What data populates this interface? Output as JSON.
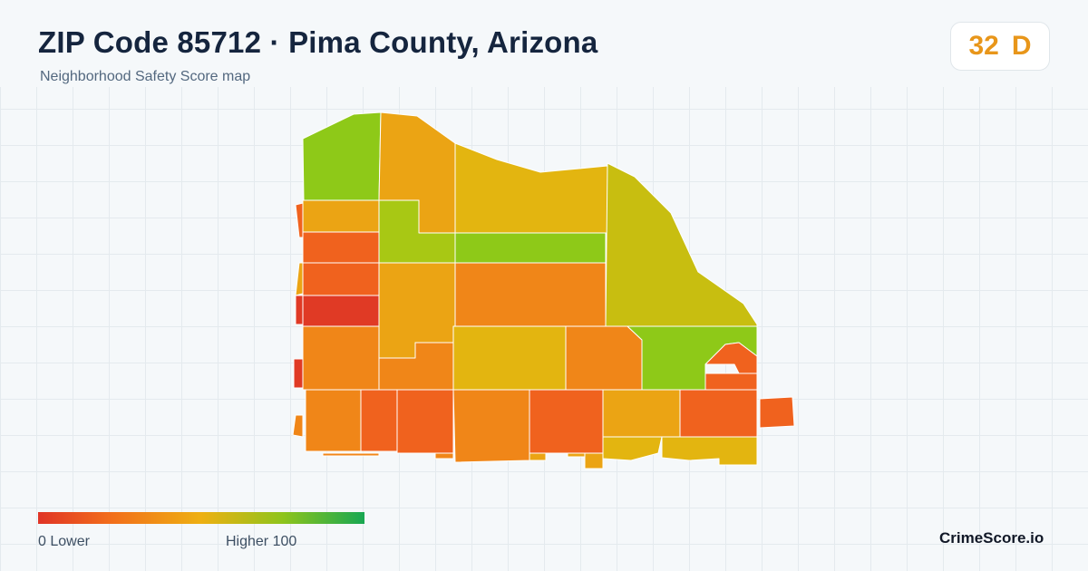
{
  "header": {
    "title": "ZIP Code 85712 · Pima County, Arizona",
    "subtitle": "Neighborhood Safety Score map"
  },
  "score": {
    "value": "32",
    "grade": "D",
    "color": "#e8961a"
  },
  "legend": {
    "low_label": "0  Lower",
    "high_label": "Higher  100",
    "colors": [
      "#e03426",
      "#f26d1b",
      "#eeb012",
      "#8ec41c",
      "#18a752"
    ]
  },
  "brand": "CrimeScore.io",
  "map": {
    "fill_colors": {
      "red": "#e03a25",
      "red_orange": "#f0621e",
      "orange": "#f08618",
      "orange_yellow": "#eba414",
      "yellow": "#e3b510",
      "olive": "#c8be10",
      "lime": "#8ec918",
      "green_lime": "#a8c814"
    }
  }
}
